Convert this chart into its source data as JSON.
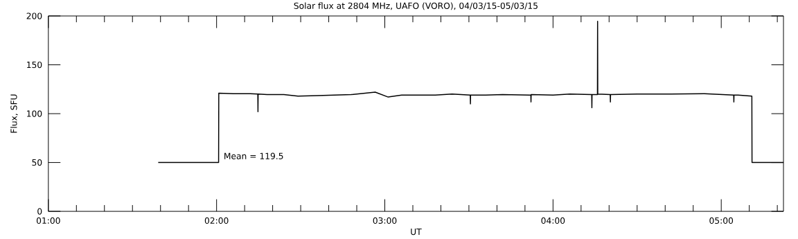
{
  "chart_data": {
    "type": "line",
    "title": "Solar flux at 2804 MHz, UAFO (VORO),  04/03/15-05/03/15",
    "xlabel": "UT",
    "ylabel": "Flux, SFU",
    "annotations": [
      "Mean =  119.5"
    ],
    "x": [
      1.653,
      2.012,
      2.013,
      2.1,
      2.2,
      2.245,
      2.246,
      2.247,
      2.3,
      2.4,
      2.484,
      2.6,
      2.8,
      2.943,
      3.02,
      3.1,
      3.3,
      3.4,
      3.508,
      3.509,
      3.51,
      3.6,
      3.7,
      3.868,
      3.869,
      3.87,
      4.0,
      4.1,
      4.23,
      4.231,
      4.232,
      4.264,
      4.265,
      4.266,
      4.34,
      4.341,
      4.342,
      4.5,
      4.7,
      4.9,
      5.074,
      5.075,
      5.076,
      5.1,
      5.182,
      5.183,
      5.37
    ],
    "values": [
      50,
      50,
      121,
      120.5,
      120.5,
      120,
      102,
      120,
      119.5,
      119.5,
      118,
      118.5,
      119.5,
      122,
      117,
      119,
      119,
      120,
      119,
      110,
      119,
      119,
      119.5,
      119,
      112,
      119.5,
      119,
      120,
      119.5,
      106,
      119.5,
      119.5,
      194.5,
      120,
      119.5,
      112,
      119.5,
      120,
      120,
      120.5,
      119,
      112,
      119,
      119,
      118,
      50,
      50
    ],
    "color": "#000000",
    "xlim": [
      1,
      5.37
    ],
    "ylim": [
      0,
      200
    ],
    "xticks": [
      {
        "value": 1,
        "label": "01:00"
      },
      {
        "value": 1.1667,
        "label": null
      },
      {
        "value": 1.3333,
        "label": null
      },
      {
        "value": 1.5,
        "label": null
      },
      {
        "value": 1.6667,
        "label": null
      },
      {
        "value": 1.8333,
        "label": null
      },
      {
        "value": 2,
        "label": "02:00"
      },
      {
        "value": 2.1667,
        "label": null
      },
      {
        "value": 2.3333,
        "label": null
      },
      {
        "value": 2.5,
        "label": null
      },
      {
        "value": 2.6667,
        "label": null
      },
      {
        "value": 2.8333,
        "label": null
      },
      {
        "value": 3,
        "label": "03:00"
      },
      {
        "value": 3.1667,
        "label": null
      },
      {
        "value": 3.3333,
        "label": null
      },
      {
        "value": 3.5,
        "label": null
      },
      {
        "value": 3.6667,
        "label": null
      },
      {
        "value": 3.8333,
        "label": null
      },
      {
        "value": 4,
        "label": "04:00"
      },
      {
        "value": 4.1667,
        "label": null
      },
      {
        "value": 4.3333,
        "label": null
      },
      {
        "value": 4.5,
        "label": null
      },
      {
        "value": 4.6667,
        "label": null
      },
      {
        "value": 4.8333,
        "label": null
      },
      {
        "value": 5,
        "label": "05:00"
      },
      {
        "value": 5.1667,
        "label": null
      },
      {
        "value": 5.3333,
        "label": null
      }
    ],
    "yticks": [
      0,
      50,
      100,
      150,
      200
    ],
    "grid": false,
    "marker": "none",
    "line_style": "solid"
  }
}
